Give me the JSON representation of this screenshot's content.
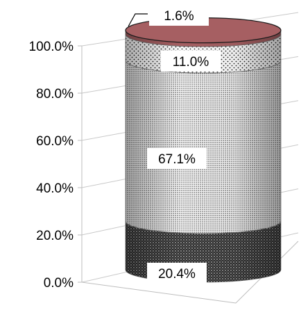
{
  "chart_data": {
    "type": "bar",
    "variant": "3d-cylinder-stacked-100",
    "categories": [
      ""
    ],
    "series": [
      {
        "values": [
          20.4
        ],
        "pattern": "dark-dots",
        "color": "#2a2a2a"
      },
      {
        "values": [
          67.1
        ],
        "pattern": "fine-dots",
        "color": "#9c9c9c"
      },
      {
        "values": [
          11.0
        ],
        "pattern": "sparse-dots",
        "color": "#6e6e6e"
      },
      {
        "values": [
          1.6
        ],
        "pattern": "solid",
        "color": "#a65f62"
      }
    ],
    "data_labels": [
      "20.4%",
      "67.1%",
      "11.0%",
      "1.6%"
    ],
    "y_ticks": [
      "0.0%",
      "20.0%",
      "40.0%",
      "60.0%",
      "80.0%",
      "100.0%"
    ],
    "ylim": [
      0,
      100
    ],
    "grid": true,
    "legend": "none"
  }
}
